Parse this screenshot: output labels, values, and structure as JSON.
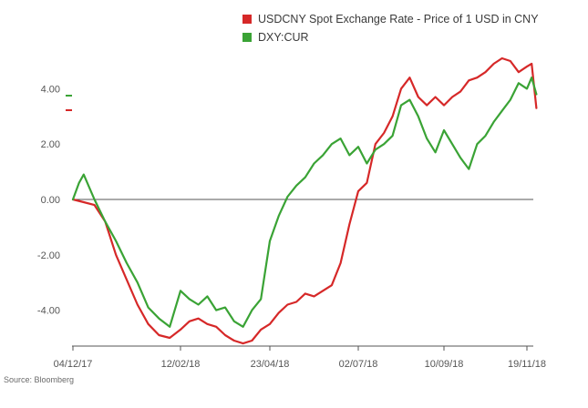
{
  "source_note": "Source: Bloomberg",
  "colors": {
    "usdcny": "#d62828",
    "dxy": "#3aa335",
    "zero_line": "#555555",
    "axis": "#555555",
    "tick_text": "#555555"
  },
  "chart_data": {
    "type": "line",
    "title": "",
    "xlabel": "",
    "ylabel": "",
    "ylim": [
      -5.3,
      5.5
    ],
    "grid": false,
    "legend_position": "top",
    "x_ticks": [
      "04/12/17",
      "12/02/18",
      "23/04/18",
      "02/07/18",
      "10/09/18",
      "19/11/18"
    ],
    "x_tick_dates": [
      "2017-12-04",
      "2018-02-12",
      "2018-04-23",
      "2018-07-02",
      "2018-09-10",
      "2018-11-19"
    ],
    "y_ticks": [
      "4.00",
      "2.00",
      "0.00",
      "-2.00",
      "-4.00"
    ],
    "y_tick_values": [
      4,
      2,
      0,
      -2,
      -4
    ],
    "series": [
      {
        "name": "USDCNY Spot Exchange Rate - Price of 1 USD in CNY",
        "color": "#d62828",
        "x": [
          "2017-12-04",
          "2017-12-11",
          "2017-12-18",
          "2017-12-25",
          "2018-01-01",
          "2018-01-08",
          "2018-01-15",
          "2018-01-22",
          "2018-01-29",
          "2018-02-05",
          "2018-02-12",
          "2018-02-19",
          "2018-02-26",
          "2018-03-05",
          "2018-03-12",
          "2018-03-19",
          "2018-03-26",
          "2018-04-02",
          "2018-04-09",
          "2018-04-16",
          "2018-04-23",
          "2018-04-30",
          "2018-05-07",
          "2018-05-14",
          "2018-05-21",
          "2018-05-28",
          "2018-06-04",
          "2018-06-11",
          "2018-06-18",
          "2018-06-25",
          "2018-07-02",
          "2018-07-09",
          "2018-07-16",
          "2018-07-23",
          "2018-07-30",
          "2018-08-06",
          "2018-08-13",
          "2018-08-20",
          "2018-08-27",
          "2018-09-03",
          "2018-09-10",
          "2018-09-17",
          "2018-09-24",
          "2018-10-01",
          "2018-10-08",
          "2018-10-15",
          "2018-10-22",
          "2018-10-29",
          "2018-11-05",
          "2018-11-12",
          "2018-11-19",
          "2018-11-23",
          "2018-11-27"
        ],
        "values": [
          0.0,
          -0.1,
          -0.2,
          -0.8,
          -2.0,
          -2.9,
          -3.8,
          -4.5,
          -4.9,
          -5.0,
          -4.7,
          -4.4,
          -4.3,
          -4.5,
          -4.6,
          -4.9,
          -5.1,
          -5.2,
          -5.1,
          -4.7,
          -4.5,
          -4.1,
          -3.8,
          -3.7,
          -3.4,
          -3.5,
          -3.3,
          -3.1,
          -2.3,
          -0.9,
          0.3,
          0.6,
          2.0,
          2.4,
          3.0,
          4.0,
          4.4,
          3.7,
          3.4,
          3.7,
          3.4,
          3.7,
          3.9,
          4.3,
          4.4,
          4.6,
          4.9,
          5.1,
          5.0,
          4.6,
          4.8,
          4.9,
          3.3
        ]
      },
      {
        "name": "DXY:CUR",
        "color": "#3aa335",
        "x": [
          "2017-12-04",
          "2017-12-08",
          "2017-12-11",
          "2017-12-18",
          "2017-12-25",
          "2018-01-01",
          "2018-01-08",
          "2018-01-15",
          "2018-01-22",
          "2018-01-29",
          "2018-02-05",
          "2018-02-12",
          "2018-02-19",
          "2018-02-26",
          "2018-03-05",
          "2018-03-12",
          "2018-03-19",
          "2018-03-26",
          "2018-04-02",
          "2018-04-09",
          "2018-04-16",
          "2018-04-23",
          "2018-04-30",
          "2018-05-07",
          "2018-05-14",
          "2018-05-21",
          "2018-05-28",
          "2018-06-04",
          "2018-06-11",
          "2018-06-18",
          "2018-06-25",
          "2018-07-02",
          "2018-07-09",
          "2018-07-16",
          "2018-07-23",
          "2018-07-30",
          "2018-08-06",
          "2018-08-13",
          "2018-08-20",
          "2018-08-27",
          "2018-09-03",
          "2018-09-10",
          "2018-09-17",
          "2018-09-24",
          "2018-10-01",
          "2018-10-08",
          "2018-10-15",
          "2018-10-22",
          "2018-10-29",
          "2018-11-05",
          "2018-11-12",
          "2018-11-19",
          "2018-11-23",
          "2018-11-27"
        ],
        "values": [
          0.0,
          0.6,
          0.9,
          0.0,
          -0.8,
          -1.5,
          -2.3,
          -3.0,
          -3.9,
          -4.3,
          -4.6,
          -3.3,
          -3.6,
          -3.8,
          -3.5,
          -4.0,
          -3.9,
          -4.4,
          -4.6,
          -4.0,
          -3.6,
          -1.5,
          -0.6,
          0.1,
          0.5,
          0.8,
          1.3,
          1.6,
          2.0,
          2.2,
          1.6,
          1.9,
          1.3,
          1.8,
          2.0,
          2.3,
          3.4,
          3.6,
          3.0,
          2.2,
          1.7,
          2.5,
          2.0,
          1.5,
          1.1,
          2.0,
          2.3,
          2.8,
          3.2,
          3.6,
          4.2,
          4.0,
          4.4,
          3.8
        ]
      }
    ]
  }
}
